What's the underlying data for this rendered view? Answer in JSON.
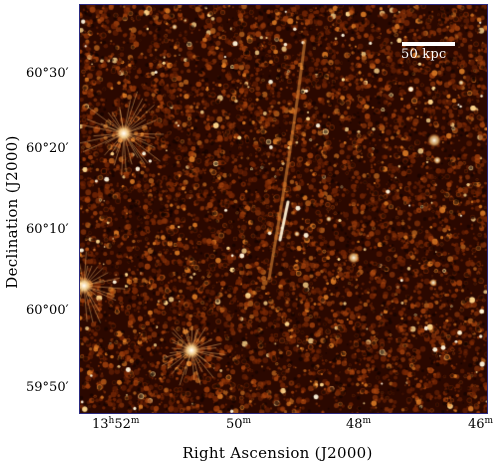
{
  "figure": {
    "scale_bar_label": "50 kpc",
    "x_axis_label": "Right Ascension (J2000)",
    "y_axis_label": "Declination (J2000)",
    "x_ticks": [
      {
        "main": "13",
        "sup1": "h",
        "mid": "52",
        "sup2": "m"
      },
      {
        "main": "50",
        "sup1": "",
        "mid": "",
        "sup2": "m"
      },
      {
        "main": "48",
        "sup1": "",
        "mid": "",
        "sup2": "m"
      },
      {
        "main": "46",
        "sup1": "",
        "mid": "",
        "sup2": "m"
      }
    ],
    "y_ticks": [
      "60°30′",
      "60°20′",
      "60°10′",
      "60°00′",
      "59°50′"
    ],
    "colors": {
      "background": "#2b0800",
      "noise_mid": "#8a3608",
      "noise_bright": "#ffd98a",
      "source": "#ffffff",
      "frame": "#2a2a80"
    }
  }
}
